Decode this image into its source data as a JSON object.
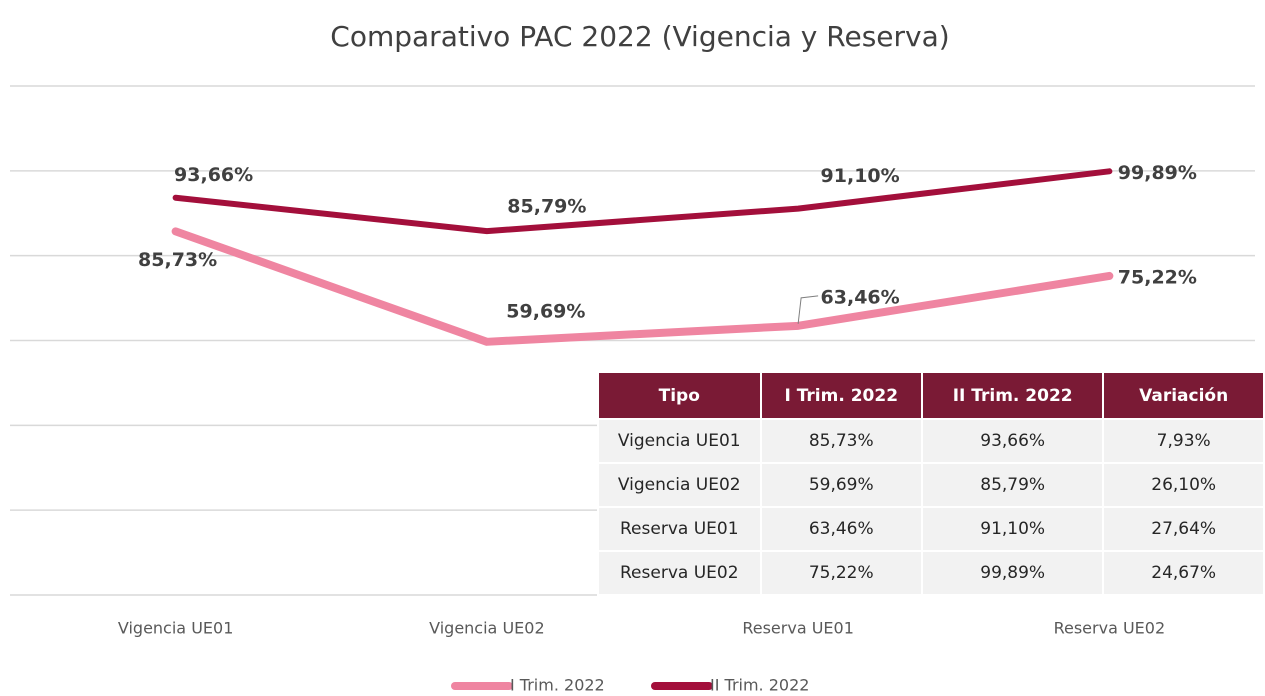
{
  "chart_data": {
    "type": "line",
    "title": "Comparativo PAC 2022 (Vigencia y Reserva)",
    "categories": [
      "Vigencia UE01",
      "Vigencia UE02",
      "Reserva UE01",
      "Reserva UE02"
    ],
    "series": [
      {
        "name": "I Trim. 2022",
        "color": "#ef85a1",
        "values": [
          85.73,
          59.69,
          63.46,
          75.22
        ],
        "value_labels": [
          "85,73%",
          "59,69%",
          "63,46%",
          "75,22%"
        ]
      },
      {
        "name": "II Trim. 2022",
        "color": "#a30f3b",
        "values": [
          93.66,
          85.79,
          91.1,
          99.89
        ],
        "value_labels": [
          "93,66%",
          "85,79%",
          "91,10%",
          "99,89%"
        ]
      }
    ],
    "ylim": [
      0,
      120
    ],
    "yticks": [
      0,
      20,
      40,
      60,
      80,
      100,
      120
    ],
    "grid": true,
    "legend": "bottom"
  },
  "table": {
    "header": [
      "Tipo",
      "I Trim. 2022",
      "II Trim. 2022",
      "Variación"
    ],
    "rows": [
      [
        "Vigencia UE01",
        "85,73%",
        "93,66%",
        "7,93%"
      ],
      [
        "Vigencia UE02",
        "59,69%",
        "85,79%",
        "26,10%"
      ],
      [
        "Reserva UE01",
        "63,46%",
        "91,10%",
        "27,64%"
      ],
      [
        "Reserva UE02",
        "75,22%",
        "99,89%",
        "24,67%"
      ]
    ]
  }
}
